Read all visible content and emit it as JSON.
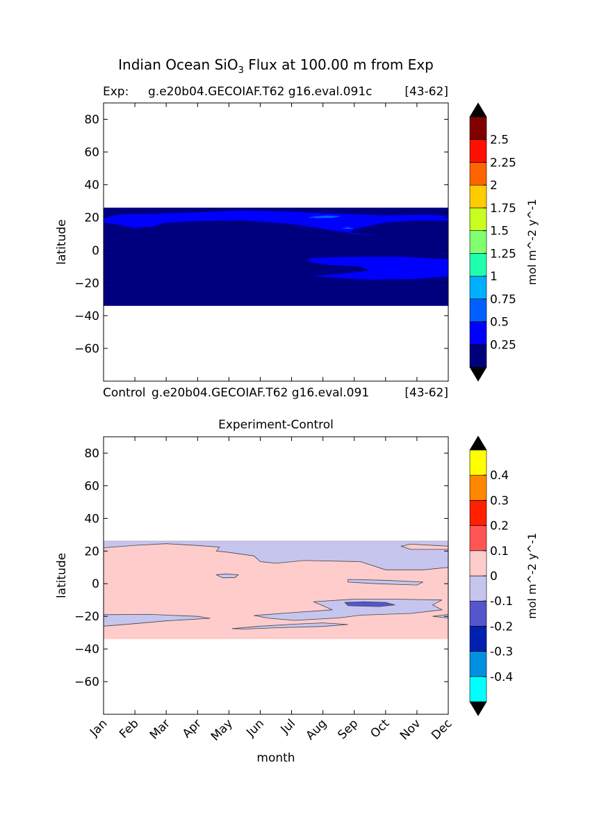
{
  "figure": {
    "title_prefix": "Indian Ocean SiO",
    "title_sub": "3",
    "title_suffix": " Flux at 100.00 m from Exp",
    "xlabel": "month"
  },
  "chart_data": [
    {
      "type": "heatmap",
      "name": "experiment",
      "title_left": "Exp:",
      "title_center": "g.e20b04.GECOIAF.T62 g16.eval.091c",
      "title_right": "[43-62]",
      "ylabel": "latitude",
      "ylim": [
        -80,
        90
      ],
      "data_lat_range": [
        -34,
        26
      ],
      "yticks": [
        80,
        60,
        40,
        20,
        0,
        -20,
        -40,
        -60
      ],
      "ytick_labels": [
        "80",
        "60",
        "40",
        "20",
        "0",
        "−20",
        "−40",
        "−60"
      ],
      "xlim": [
        0,
        11
      ],
      "background_level_color": "#00007f",
      "regions": [
        {
          "level": "0.25-0.5",
          "color": "#0000ff",
          "points": [
            [
              0,
              20
            ],
            [
              0.6,
              22
            ],
            [
              1.6,
              22.2
            ],
            [
              3,
              23.2
            ],
            [
              4.5,
              24.3
            ],
            [
              6,
              23.5
            ],
            [
              7.5,
              22.3
            ],
            [
              9,
              21.3
            ],
            [
              10.3,
              21.7
            ],
            [
              11,
              21
            ],
            [
              11,
              18
            ],
            [
              10,
              18.3
            ],
            [
              9,
              17
            ],
            [
              8,
              13
            ],
            [
              7.8,
              10.2
            ],
            [
              8.8,
              9
            ],
            [
              7.5,
              11.5
            ],
            [
              6.7,
              14
            ],
            [
              6,
              16
            ],
            [
              4.5,
              18.2
            ],
            [
              2.9,
              17.8
            ],
            [
              1.9,
              16.5
            ],
            [
              1.6,
              14.5
            ],
            [
              1,
              13.5
            ],
            [
              0.5,
              15.5
            ],
            [
              0,
              17
            ]
          ]
        },
        {
          "level": "0.25-0.5",
          "color": "#0000ff",
          "points": [
            [
              6.5,
              -5
            ],
            [
              7.5,
              -4.2
            ],
            [
              8.5,
              -4
            ],
            [
              9.5,
              -4
            ],
            [
              11,
              -5.5
            ],
            [
              11,
              -16
            ],
            [
              10,
              -17.5
            ],
            [
              8.5,
              -18
            ],
            [
              7.5,
              -17
            ],
            [
              6.7,
              -16
            ],
            [
              7.5,
              -14.5
            ],
            [
              8.5,
              -12.5
            ],
            [
              8.2,
              -10
            ],
            [
              7.2,
              -9
            ],
            [
              6.6,
              -7.2
            ]
          ]
        },
        {
          "level": "0.5-0.75",
          "color": "#0060ff",
          "points": [
            [
              6.5,
              20.2
            ],
            [
              7.1,
              21.2
            ],
            [
              7.6,
              20.8
            ],
            [
              7.3,
              19.8
            ],
            [
              6.8,
              19.6
            ]
          ]
        },
        {
          "level": "0.5-0.75",
          "color": "#0060ff",
          "points": [
            [
              7.6,
              13.2
            ],
            [
              7.8,
              14.2
            ],
            [
              8,
              13
            ]
          ]
        }
      ],
      "colorbar": {
        "label": "mol m^-2 y^-1",
        "levels": [
          0,
          0.25,
          0.5,
          0.75,
          1,
          1.25,
          1.5,
          1.75,
          2,
          2.25,
          2.5,
          2.75
        ],
        "colors": [
          "#00007f",
          "#0000ff",
          "#0060ff",
          "#00b0ff",
          "#20ffb0",
          "#80ff70",
          "#c8ff20",
          "#ffcc00",
          "#ff6400",
          "#ff1000",
          "#800000"
        ],
        "tick_labels": [
          "0.25",
          "0.5",
          "0.75",
          "1",
          "1.25",
          "1.5",
          "1.75",
          "2",
          "2.25",
          "2.5"
        ],
        "extend_color": "#000000"
      }
    },
    {
      "type": "heatmap",
      "name": "difference",
      "title_left": "Control",
      "title_center": "g.e20b04.GECOIAF.T62 g16.eval.091",
      "title_right": "[43-62]",
      "subtitle": "Experiment-Control",
      "ylabel": "latitude",
      "ylim": [
        -80,
        90
      ],
      "data_lat_range": [
        -34,
        26
      ],
      "yticks": [
        80,
        60,
        40,
        20,
        0,
        -20,
        -40,
        -60
      ],
      "ytick_labels": [
        "80",
        "60",
        "40",
        "20",
        "0",
        "−20",
        "−40",
        "−60"
      ],
      "xlim": [
        0,
        11
      ],
      "xtick_labels": [
        "Jan",
        "Feb",
        "Mar",
        "Apr",
        "May",
        "Jun",
        "Jul",
        "Aug",
        "Sep",
        "Oct",
        "Nov",
        "Dec"
      ],
      "background_level_color": "#ffcccc",
      "regions": [
        {
          "level": "-0.1-0",
          "color": "#c5c5ee",
          "points": [
            [
              0,
              26
            ],
            [
              11,
              26
            ],
            [
              11,
              23
            ],
            [
              9.8,
              24.2
            ],
            [
              9.5,
              23
            ],
            [
              9.8,
              21
            ],
            [
              11,
              21
            ],
            [
              11,
              10
            ],
            [
              10.2,
              8.5
            ],
            [
              9,
              8.5
            ],
            [
              8.2,
              13.5
            ],
            [
              6.4,
              14.2
            ],
            [
              5.5,
              12.5
            ],
            [
              5,
              13.5
            ],
            [
              4.8,
              17
            ],
            [
              4,
              19.2
            ],
            [
              3.6,
              20
            ],
            [
              3.7,
              22.4
            ],
            [
              3,
              23.4
            ],
            [
              2,
              24.5
            ],
            [
              1,
              23.5
            ],
            [
              0,
              22
            ]
          ]
        },
        {
          "level": "-0.1-0",
          "color": "#c5c5ee",
          "points": [
            [
              3.6,
              5.5
            ],
            [
              3.9,
              6
            ],
            [
              4.3,
              5.5
            ],
            [
              4.2,
              3.8
            ],
            [
              3.8,
              3.6
            ]
          ]
        },
        {
          "level": "-0.1-0",
          "color": "#c5c5ee",
          "points": [
            [
              7.8,
              2.6
            ],
            [
              9,
              2.1
            ],
            [
              10.2,
              1
            ],
            [
              10,
              -0.8
            ],
            [
              8.7,
              0
            ],
            [
              7.8,
              1
            ]
          ]
        },
        {
          "level": "-0.1-0",
          "color": "#c5c5ee",
          "points": [
            [
              6.7,
              -11
            ],
            [
              8,
              -9.5
            ],
            [
              9.3,
              -9.5
            ],
            [
              10.8,
              -10
            ],
            [
              10.5,
              -13
            ],
            [
              10.8,
              -16
            ],
            [
              9.8,
              -18.2
            ],
            [
              8.2,
              -19.3
            ],
            [
              7.5,
              -21
            ],
            [
              6.1,
              -22.5
            ],
            [
              5.3,
              -21.2
            ],
            [
              4.8,
              -19.5
            ],
            [
              5.8,
              -18
            ],
            [
              7.3,
              -16
            ]
          ]
        },
        {
          "level": "-0.1-0",
          "color": "#c5c5ee",
          "points": [
            [
              0,
              -19
            ],
            [
              1.5,
              -18.8
            ],
            [
              3,
              -20
            ],
            [
              3.4,
              -21.2
            ],
            [
              2,
              -22.8
            ],
            [
              1,
              -24.5
            ],
            [
              0,
              -26
            ]
          ]
        },
        {
          "level": "-0.1-0",
          "color": "#c5c5ee",
          "points": [
            [
              4.1,
              -27.5
            ],
            [
              5,
              -26
            ],
            [
              6.1,
              -24.8
            ],
            [
              7,
              -24
            ],
            [
              7.8,
              -25
            ],
            [
              7,
              -26.2
            ],
            [
              5.5,
              -27
            ],
            [
              4.5,
              -27.8
            ]
          ]
        },
        {
          "level": "-0.1-0",
          "color": "#c5c5ee",
          "points": [
            [
              10.5,
              -20
            ],
            [
              11,
              -18.8
            ],
            [
              11,
              -21
            ]
          ]
        },
        {
          "level": "-0.2--0.1",
          "color": "#5555cc",
          "points": [
            [
              7.7,
              -11.5
            ],
            [
              8.3,
              -11
            ],
            [
              9,
              -11.5
            ],
            [
              9.3,
              -13
            ],
            [
              8.8,
              -14
            ],
            [
              7.8,
              -13.5
            ]
          ]
        }
      ],
      "colorbar": {
        "label": "mol m^-2 y^-1",
        "levels": [
          -0.5,
          -0.4,
          -0.3,
          -0.2,
          -0.1,
          0,
          0.1,
          0.2,
          0.3,
          0.4,
          0.5
        ],
        "colors": [
          "#00ffff",
          "#0090e0",
          "#0020b0",
          "#5555cc",
          "#c5c5ee",
          "#ffcccc",
          "#ff5555",
          "#ff2000",
          "#ff8800",
          "#ffff00"
        ],
        "tick_labels": [
          "-0.4",
          "-0.3",
          "-0.2",
          "-0.1",
          "0",
          "0.1",
          "0.2",
          "0.3",
          "0.4"
        ],
        "extend_color": "#000000"
      }
    }
  ]
}
